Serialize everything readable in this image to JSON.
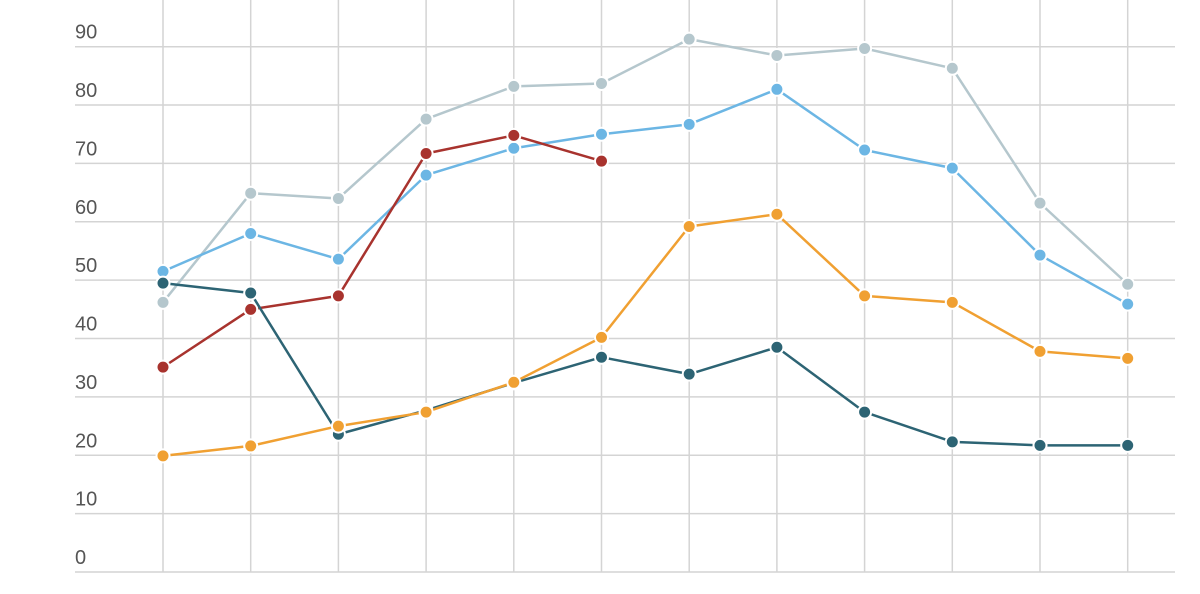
{
  "chart_data": {
    "type": "line",
    "categories": [
      null,
      null,
      null,
      null,
      null,
      null,
      null,
      null,
      null,
      null,
      null,
      null
    ],
    "series": [
      {
        "color": "#b5c7cd",
        "values": [
          46.2,
          64.9,
          64,
          77.6,
          83.2,
          83.7,
          91.3,
          88.5,
          89.7,
          86.3,
          63.2,
          49.3
        ]
      },
      {
        "color": "#6cb6e4",
        "values": [
          51.5,
          58,
          53.6,
          68,
          72.6,
          75,
          76.7,
          82.7,
          72.3,
          69.2,
          54.3,
          45.9
        ]
      },
      {
        "color": "#a8332e",
        "values": [
          35.1,
          45,
          47.3,
          71.7,
          74.8,
          70.4,
          null,
          null,
          null,
          null,
          null,
          null
        ]
      },
      {
        "color": "#2d6474",
        "values": [
          49.5,
          47.8,
          23.6,
          27.7,
          32.4,
          36.8,
          33.9,
          38.5,
          27.4,
          22.3,
          21.7,
          21.7
        ]
      },
      {
        "color": "#f0a032",
        "values": [
          19.9,
          21.6,
          25,
          27.4,
          32.5,
          40.2,
          59.2,
          61.3,
          47.3,
          46.2,
          37.8,
          36.6
        ]
      }
    ],
    "ylim": [
      0,
      98
    ],
    "yticks": [
      0,
      10,
      20,
      30,
      40,
      50,
      60,
      70,
      80,
      90
    ],
    "grid": true
  }
}
